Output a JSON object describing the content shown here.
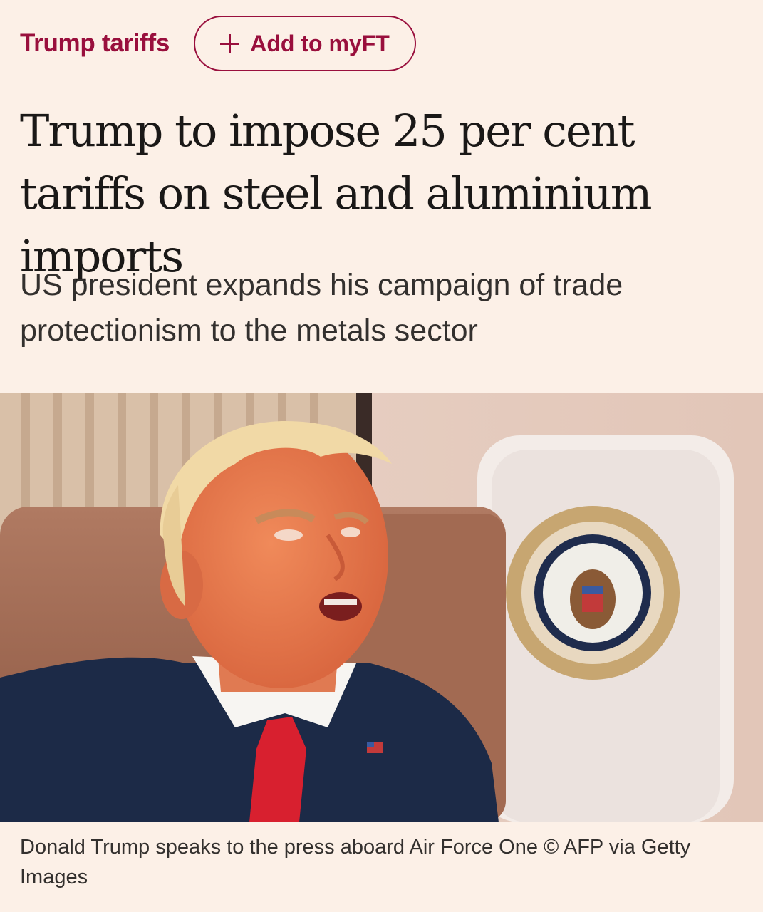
{
  "topic": {
    "label": "Trump tariffs",
    "add_button_label": "Add to myFT",
    "add_button_icon": "plus-icon"
  },
  "article": {
    "headline": "Trump to impose 25 per cent tariffs on steel and aluminium imports",
    "standfirst": "US president expands his campaign of trade protectionism to the metals sector"
  },
  "image": {
    "caption": "Donald Trump speaks to the press aboard Air Force One © AFP via Getty Images"
  },
  "colors": {
    "background": "#fcf0e7",
    "accent": "#990f3d",
    "headline_text": "#1a1817",
    "body_text": "#33302e"
  }
}
